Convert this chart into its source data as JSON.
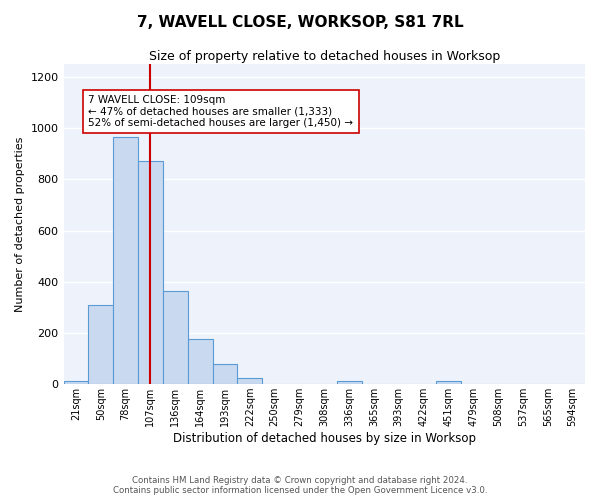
{
  "title": "7, WAVELL CLOSE, WORKSOP, S81 7RL",
  "subtitle": "Size of property relative to detached houses in Worksop",
  "xlabel": "Distribution of detached houses by size in Worksop",
  "ylabel": "Number of detached properties",
  "bin_labels": [
    "21sqm",
    "50sqm",
    "78sqm",
    "107sqm",
    "136sqm",
    "164sqm",
    "193sqm",
    "222sqm",
    "250sqm",
    "279sqm",
    "308sqm",
    "336sqm",
    "365sqm",
    "393sqm",
    "422sqm",
    "451sqm",
    "479sqm",
    "508sqm",
    "537sqm",
    "565sqm",
    "594sqm"
  ],
  "bar_heights": [
    13,
    310,
    965,
    870,
    365,
    175,
    80,
    25,
    0,
    0,
    0,
    12,
    0,
    0,
    0,
    12,
    0,
    0,
    0,
    0,
    0
  ],
  "bar_color": "#c9d9f0",
  "bar_edge_color": "#5b9bd5",
  "ylim": [
    0,
    1250
  ],
  "yticks": [
    0,
    200,
    400,
    600,
    800,
    1000,
    1200
  ],
  "property_line_x": 3,
  "property_line_color": "#cc0000",
  "annotation_text": "7 WAVELL CLOSE: 109sqm\n← 47% of detached houses are smaller (1,333)\n52% of semi-detached houses are larger (1,450) →",
  "annotation_box_color": "#ffffff",
  "annotation_box_edge": "#cc0000",
  "footnote": "Contains HM Land Registry data © Crown copyright and database right 2024.\nContains public sector information licensed under the Open Government Licence v3.0.",
  "bg_color": "#edf2fb",
  "grid_color": "#ffffff",
  "fig_bg_color": "#ffffff"
}
